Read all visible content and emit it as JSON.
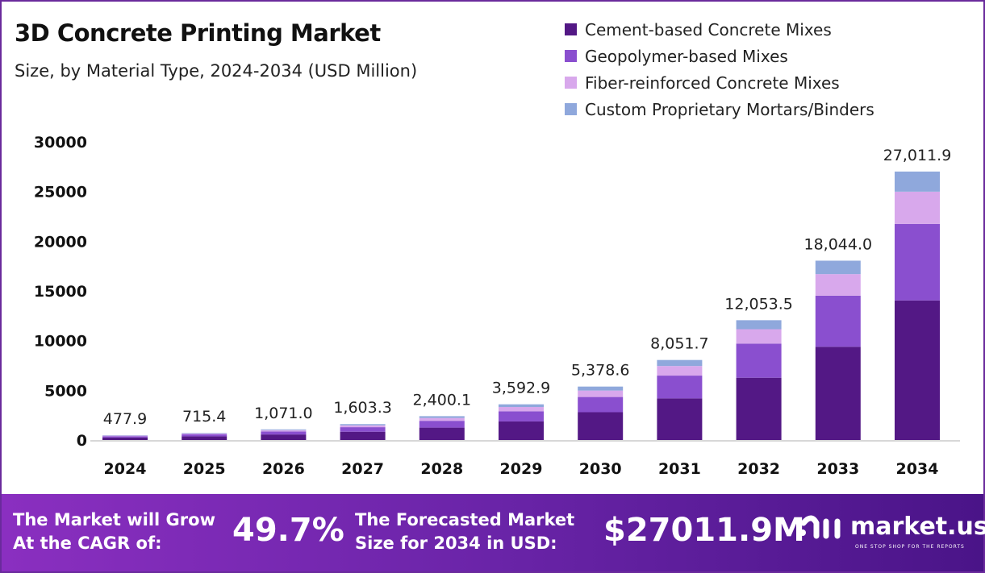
{
  "chart_data": {
    "type": "bar",
    "stacked": true,
    "title": "3D Concrete Printing Market",
    "subtitle": "Size, by Material Type, 2024-2034 (USD Million)",
    "categories": [
      "2024",
      "2025",
      "2026",
      "2027",
      "2028",
      "2029",
      "2030",
      "2031",
      "2032",
      "2033",
      "2034"
    ],
    "totals": [
      "477.9",
      "715.4",
      "1,071.0",
      "1,603.3",
      "2,400.1",
      "3,592.9",
      "5,378.6",
      "8,051.7",
      "12,053.5",
      "18,044.0",
      "27,011.9"
    ],
    "total_values": [
      477.9,
      715.4,
      1071.0,
      1603.3,
      2400.1,
      3592.9,
      5378.6,
      8051.7,
      12053.5,
      18044.0,
      27011.9
    ],
    "series": [
      {
        "name": "Cement-based Concrete Mixes",
        "color": "#531885",
        "values": [
          248.5,
          372.0,
          556.9,
          833.7,
          1248.1,
          1868.3,
          2796.9,
          4186.9,
          6267.8,
          9382.9,
          14046.2
        ]
      },
      {
        "name": "Geopolymer-based Mixes",
        "color": "#8a4fcf",
        "values": [
          136.2,
          203.9,
          305.2,
          456.9,
          684.0,
          1024.0,
          1532.9,
          2294.7,
          3435.2,
          5142.5,
          7698.4
        ]
      },
      {
        "name": "Fiber-reinforced Concrete Mixes",
        "color": "#d8a8ec",
        "values": [
          57.3,
          85.8,
          128.5,
          192.4,
          288.0,
          431.1,
          645.4,
          966.2,
          1446.4,
          2165.3,
          3241.4
        ]
      },
      {
        "name": "Custom Proprietary Mortars/Binders",
        "color": "#8fa8dc",
        "values": [
          35.8,
          53.7,
          80.3,
          120.2,
          180.0,
          269.5,
          403.4,
          603.9,
          904.0,
          1353.3,
          2025.9
        ]
      }
    ],
    "yticks": [
      "0",
      "5000",
      "10000",
      "15000",
      "20000",
      "25000",
      "30000"
    ],
    "ylim": [
      0,
      30000
    ],
    "xlabel": "",
    "ylabel": "",
    "grid": false,
    "legend": "top-right"
  },
  "banner": {
    "cagr_label_1": "The Market will Grow",
    "cagr_label_2": "At the CAGR of:",
    "cagr_value": "49.7%",
    "forecast_label_1": "The Forecasted Market",
    "forecast_label_2": "Size for 2034 in USD:",
    "forecast_value": "$27011.9M",
    "logo_name": "market.us",
    "logo_tagline": "ONE STOP SHOP FOR THE REPORTS"
  }
}
